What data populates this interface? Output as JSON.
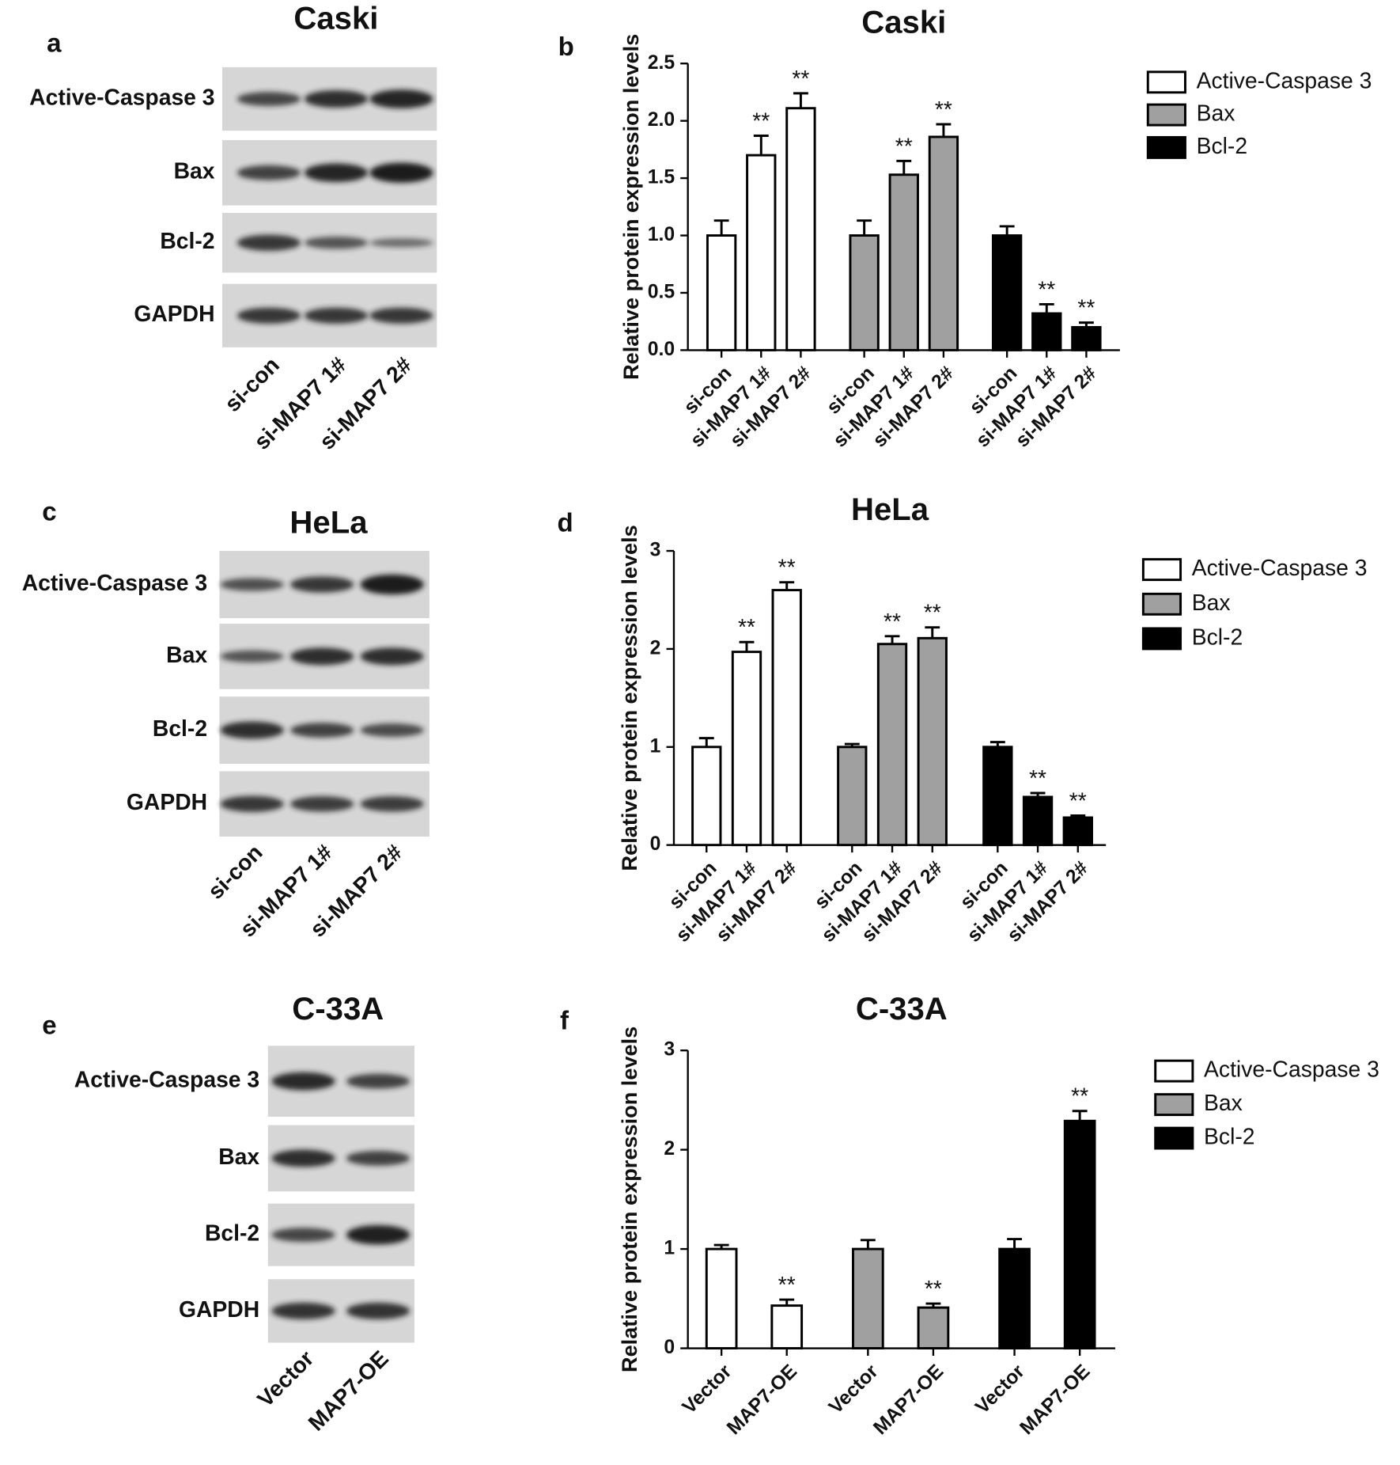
{
  "blots": [
    {
      "panel_label": "a",
      "title": "Caski",
      "rows": [
        "Active-Caspase 3",
        "Bax",
        "Bcl-2",
        "GAPDH"
      ],
      "lanes": [
        "si-con",
        "si-MAP7 1#",
        "si-MAP7 2#"
      ]
    },
    {
      "panel_label": "c",
      "title": "HeLa",
      "rows": [
        "Active-Caspase 3",
        "Bax",
        "Bcl-2",
        "GAPDH"
      ],
      "lanes": [
        "si-con",
        "si-MAP7 1#",
        "si-MAP7 2#"
      ]
    },
    {
      "panel_label": "e",
      "title": "C-33A",
      "rows": [
        "Active-Caspase 3",
        "Bax",
        "Bcl-2",
        "GAPDH"
      ],
      "lanes": [
        "Vector",
        "MAP7-OE"
      ]
    }
  ],
  "chart_data": [
    {
      "type": "bar",
      "panel_label": "b",
      "title": "Caski",
      "y_label": "Relative protein expression levels",
      "categories": [
        "si-con",
        "si-MAP7 1#",
        "si-MAP7 2#"
      ],
      "series": [
        {
          "name": "Active-Caspase 3",
          "color": "#ffffff",
          "values": [
            1.0,
            1.7,
            2.11
          ],
          "errors": [
            0.13,
            0.17,
            0.13
          ],
          "significance": [
            null,
            "**",
            "**"
          ]
        },
        {
          "name": "Bax",
          "color": "#a0a0a0",
          "values": [
            1.0,
            1.53,
            1.86
          ],
          "errors": [
            0.13,
            0.12,
            0.11
          ],
          "significance": [
            null,
            "**",
            "**"
          ]
        },
        {
          "name": "Bcl-2",
          "color": "#000000",
          "values": [
            1.0,
            0.32,
            0.2
          ],
          "errors": [
            0.08,
            0.08,
            0.04
          ],
          "significance": [
            null,
            "**",
            "**"
          ]
        }
      ],
      "ylim": [
        0,
        2.5
      ],
      "yticks": [
        {
          "value": 0,
          "label": "0.0"
        },
        0.5,
        {
          "value": 1,
          "label": "1.0"
        },
        1.5,
        {
          "value": 2,
          "label": "2.0"
        },
        2.5
      ]
    },
    {
      "type": "bar",
      "panel_label": "d",
      "title": "HeLa",
      "y_label": "Relative protein expression levels",
      "categories": [
        "si-con",
        "si-MAP7 1#",
        "si-MAP7 2#"
      ],
      "series": [
        {
          "name": "Active-Caspase 3",
          "color": "#ffffff",
          "values": [
            1.0,
            1.97,
            2.6
          ],
          "errors": [
            0.09,
            0.1,
            0.08
          ],
          "significance": [
            null,
            "**",
            "**"
          ]
        },
        {
          "name": "Bax",
          "color": "#a0a0a0",
          "values": [
            1.0,
            2.05,
            2.11
          ],
          "errors": [
            0.03,
            0.08,
            0.11
          ],
          "significance": [
            null,
            "**",
            "**"
          ]
        },
        {
          "name": "Bcl-2",
          "color": "#000000",
          "values": [
            1.0,
            0.49,
            0.28
          ],
          "errors": [
            0.05,
            0.04,
            0.02
          ],
          "significance": [
            null,
            "**",
            "**"
          ]
        }
      ],
      "ylim": [
        0,
        3
      ],
      "yticks": [
        0,
        1,
        2,
        3
      ]
    },
    {
      "type": "bar",
      "panel_label": "f",
      "title": "C-33A",
      "y_label": "Relative protein expression levels",
      "categories": [
        "Vector",
        "MAP7-OE"
      ],
      "series": [
        {
          "name": "Active-Caspase 3",
          "color": "#ffffff",
          "values": [
            1.0,
            0.43
          ],
          "errors": [
            0.04,
            0.06
          ],
          "significance": [
            null,
            "**"
          ]
        },
        {
          "name": "Bax",
          "color": "#a0a0a0",
          "values": [
            1.0,
            0.41
          ],
          "errors": [
            0.09,
            0.04
          ],
          "significance": [
            null,
            "**"
          ]
        },
        {
          "name": "Bcl-2",
          "color": "#000000",
          "values": [
            1.0,
            2.29
          ],
          "errors": [
            0.1,
            0.1
          ],
          "significance": [
            null,
            "**"
          ]
        }
      ],
      "ylim": [
        0,
        3
      ],
      "yticks": [
        0,
        1,
        2,
        3
      ]
    }
  ]
}
